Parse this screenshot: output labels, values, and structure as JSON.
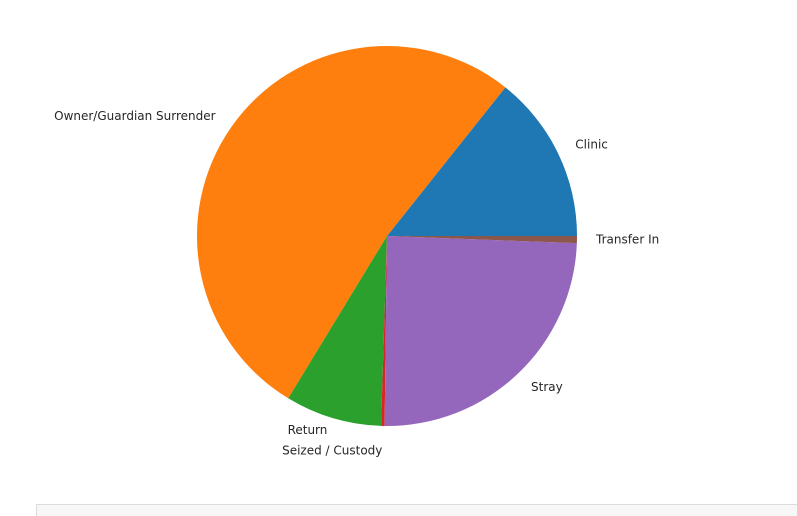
{
  "chart_data": {
    "type": "pie",
    "slices": [
      {
        "label": "Clinic",
        "value": 14.3,
        "color": "#1f77b4"
      },
      {
        "label": "Owner/Guardian Surrender",
        "value": 52.0,
        "color": "#ff7f0e"
      },
      {
        "label": "Return",
        "value": 8.2,
        "color": "#2ca02c"
      },
      {
        "label": "Seized / Custody",
        "value": 0.3,
        "color": "#d62728"
      },
      {
        "label": "Stray",
        "value": 24.6,
        "color": "#9467bd"
      },
      {
        "label": "Transfer In",
        "value": 0.6,
        "color": "#8c564b"
      }
    ],
    "start_angle_deg": 0,
    "direction": "counterclockwise",
    "legend": false
  }
}
